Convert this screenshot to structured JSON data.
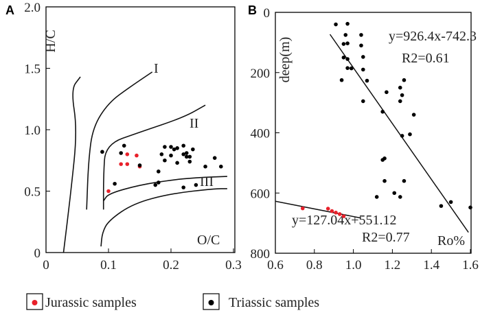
{
  "chart_data": [
    {
      "type": "scatter",
      "panel_label": "A",
      "xlabel": "O/C",
      "ylabel": "H/C",
      "xlim": [
        0,
        0.3
      ],
      "ylim": [
        0,
        2.0
      ],
      "x_ticks": [
        "0",
        "0.1",
        "0.2",
        "0.3"
      ],
      "y_ticks": [
        "0",
        "0.5",
        "1.0",
        "1.5",
        "2.0"
      ],
      "kerogen_labels": [
        "I",
        "II",
        "III"
      ],
      "series": [
        {
          "name": "Jurassic samples",
          "color": "#e8202a",
          "points": [
            [
              0.1,
              0.5
            ],
            [
              0.12,
              0.72
            ],
            [
              0.13,
              0.72
            ],
            [
              0.13,
              0.8
            ],
            [
              0.145,
              0.79
            ],
            [
              0.15,
              0.7
            ]
          ]
        },
        {
          "name": "Triassic samples",
          "color": "#000000",
          "points": [
            [
              0.09,
              0.82
            ],
            [
              0.11,
              0.56
            ],
            [
              0.12,
              0.81
            ],
            [
              0.125,
              0.87
            ],
            [
              0.15,
              0.71
            ],
            [
              0.175,
              0.55
            ],
            [
              0.18,
              0.66
            ],
            [
              0.18,
              0.57
            ],
            [
              0.185,
              0.8
            ],
            [
              0.19,
              0.86
            ],
            [
              0.19,
              0.75
            ],
            [
              0.2,
              0.79
            ],
            [
              0.2,
              0.86
            ],
            [
              0.205,
              0.84
            ],
            [
              0.21,
              0.73
            ],
            [
              0.21,
              0.85
            ],
            [
              0.22,
              0.87
            ],
            [
              0.22,
              0.8
            ],
            [
              0.22,
              0.53
            ],
            [
              0.225,
              0.78
            ],
            [
              0.225,
              0.81
            ],
            [
              0.23,
              0.74
            ],
            [
              0.23,
              0.78
            ],
            [
              0.235,
              0.84
            ],
            [
              0.24,
              0.55
            ],
            [
              0.255,
              0.7
            ],
            [
              0.27,
              0.77
            ],
            [
              0.28,
              0.7
            ]
          ]
        }
      ],
      "boundaries": [
        {
          "name": "I",
          "points": [
            [
              0.028,
              0
            ],
            [
              0.04,
              0.5
            ],
            [
              0.05,
              1.0
            ],
            [
              0.04,
              1.33
            ],
            [
              0.055,
              1.43
            ]
          ]
        },
        {
          "name": "I-upper",
          "points": [
            [
              0.065,
              0.35
            ],
            [
              0.068,
              0.75
            ],
            [
              0.075,
              1.02
            ],
            [
              0.1,
              1.22
            ],
            [
              0.135,
              1.35
            ],
            [
              0.17,
              1.47
            ]
          ]
        },
        {
          "name": "II",
          "points": [
            [
              0.092,
              0.35
            ],
            [
              0.092,
              0.62
            ],
            [
              0.095,
              0.88
            ],
            [
              0.15,
              0.98
            ],
            [
              0.22,
              1.1
            ],
            [
              0.255,
              1.2
            ]
          ]
        },
        {
          "name": "III",
          "points": [
            [
              0.092,
              0.42
            ],
            [
              0.1,
              0.48
            ],
            [
              0.15,
              0.55
            ],
            [
              0.2,
              0.59
            ],
            [
              0.24,
              0.61
            ],
            [
              0.29,
              0.62
            ]
          ]
        },
        {
          "name": "lower",
          "points": [
            [
              0.088,
              0.05
            ],
            [
              0.09,
              0.16
            ],
            [
              0.1,
              0.26
            ],
            [
              0.14,
              0.4
            ],
            [
              0.2,
              0.48
            ],
            [
              0.27,
              0.52
            ],
            [
              0.29,
              0.52
            ]
          ]
        }
      ]
    },
    {
      "type": "scatter",
      "panel_label": "B",
      "xlabel": "Ro%",
      "ylabel": "deep(m)",
      "xlim": [
        0.6,
        1.6
      ],
      "ylim": [
        800,
        0
      ],
      "x_ticks": [
        "0.6",
        "0.8",
        "1.0",
        "1.2",
        "1.4",
        "1.6"
      ],
      "y_ticks": [
        "0",
        "200",
        "400",
        "600",
        "800"
      ],
      "series": [
        {
          "name": "Jurassic samples",
          "color": "#e8202a",
          "points": [
            [
              0.74,
              651
            ],
            [
              0.87,
              652
            ],
            [
              0.89,
              660
            ],
            [
              0.91,
              665
            ],
            [
              0.93,
              670
            ],
            [
              0.95,
              677
            ]
          ]
        },
        {
          "name": "Triassic samples",
          "color": "#000000",
          "points": [
            [
              0.91,
              40
            ],
            [
              0.97,
              38
            ],
            [
              0.95,
              105
            ],
            [
              0.96,
              75
            ],
            [
              0.97,
              103
            ],
            [
              0.95,
              150
            ],
            [
              0.97,
              155
            ],
            [
              1.04,
              75
            ],
            [
              1.05,
              148
            ],
            [
              1.05,
              190
            ],
            [
              1.04,
              110
            ],
            [
              0.97,
              185
            ],
            [
              0.99,
              186
            ],
            [
              0.94,
              225
            ],
            [
              1.07,
              227
            ],
            [
              1.05,
              295
            ],
            [
              1.15,
              330
            ],
            [
              1.17,
              265
            ],
            [
              1.15,
              490
            ],
            [
              1.16,
              485
            ],
            [
              1.24,
              250
            ],
            [
              1.25,
              275
            ],
            [
              1.26,
              225
            ],
            [
              1.24,
              295
            ],
            [
              1.31,
              340
            ],
            [
              1.29,
              405
            ],
            [
              1.25,
              410
            ],
            [
              1.16,
              560
            ],
            [
              1.21,
              600
            ],
            [
              1.26,
              560
            ],
            [
              1.24,
              613
            ],
            [
              1.12,
              613
            ],
            [
              1.45,
              643
            ],
            [
              1.5,
              630
            ],
            [
              1.6,
              648
            ]
          ]
        }
      ],
      "fits": [
        {
          "equation": "y=926.4x-742.3",
          "r2": "R2=0.61",
          "x_range": [
            0.88,
            1.59
          ]
        },
        {
          "equation": "y=127.04x+551.12",
          "r2": "R2=0.77",
          "x_range": [
            0.6,
            1.04
          ]
        }
      ]
    }
  ],
  "legend": [
    {
      "label": "Jurassic samples",
      "color": "#e8202a"
    },
    {
      "label": "Triassic samples",
      "color": "#000000"
    }
  ]
}
